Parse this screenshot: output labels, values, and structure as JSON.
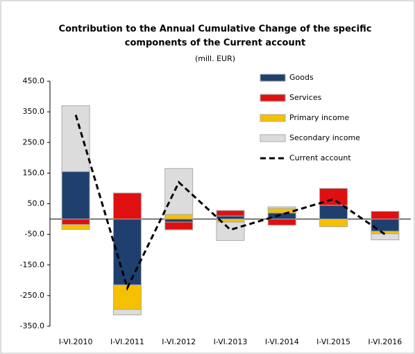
{
  "chart_data": {
    "type": "bar",
    "title_lines": [
      "Contribution  to the Annual Cumulative  Change of the specific",
      "components  of the Current account"
    ],
    "subtitle": "(mill. EUR)",
    "categories": [
      "I-VI.2010",
      "I-VI.2011",
      "I-VI.2012",
      "I-VI.2013",
      "I-VI.2014",
      "I-VI.2015",
      "I-VI.2016"
    ],
    "series": [
      {
        "name": "Goods",
        "color": "#1f3f6e",
        "values": [
          155,
          -215,
          -10,
          10,
          20,
          45,
          -40
        ]
      },
      {
        "name": "Services",
        "color": "#e01010",
        "values": [
          -18,
          85,
          -25,
          18,
          -20,
          55,
          25
        ]
      },
      {
        "name": "Primary income",
        "color": "#f5c000",
        "values": [
          -16,
          -80,
          15,
          -10,
          15,
          -25,
          -8
        ]
      },
      {
        "name": "Secondary income",
        "color": "#dcdcdc",
        "values": [
          215,
          -18,
          150,
          -60,
          5,
          0,
          -20
        ]
      },
      {
        "name": "Current account",
        "type": "line",
        "color": "#000000",
        "values": [
          340,
          -225,
          120,
          -35,
          15,
          65,
          -50
        ]
      }
    ],
    "ylim": [
      -350,
      450
    ],
    "yticks": [
      {
        "value": -350,
        "label": "-350.0"
      },
      {
        "value": -250,
        "label": "-250.0"
      },
      {
        "value": -150,
        "label": "-150.0"
      },
      {
        "value": -50,
        "label": "-50.0"
      },
      {
        "value": 50,
        "label": "50.0"
      },
      {
        "value": 150,
        "label": "150.0"
      },
      {
        "value": 250,
        "label": "250.0"
      },
      {
        "value": 350,
        "label": "350.0"
      },
      {
        "value": 450,
        "label": "450.0"
      }
    ],
    "legend": "top-right"
  }
}
